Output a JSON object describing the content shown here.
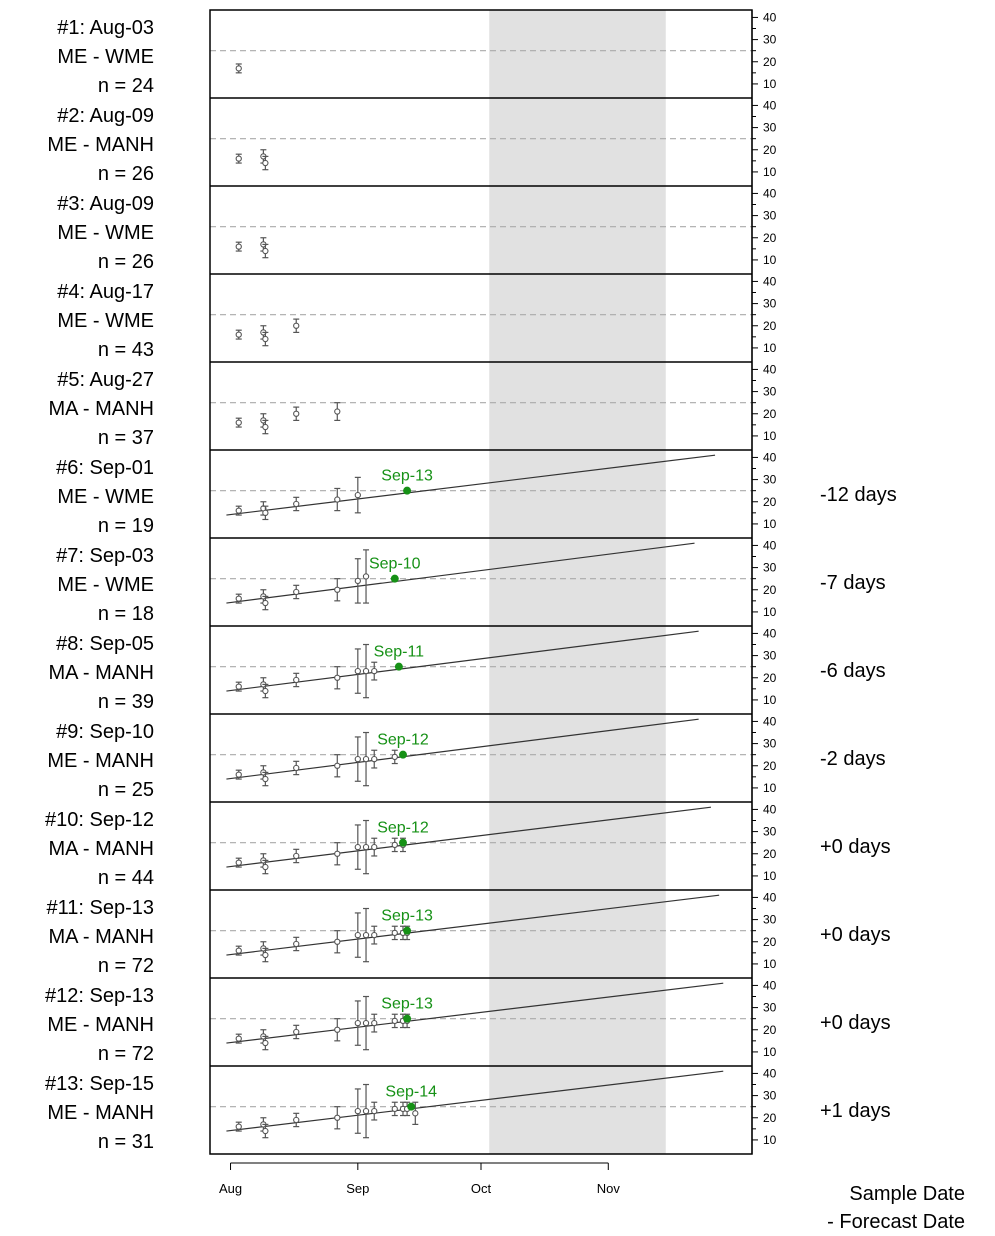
{
  "chart_data": {
    "type": "scatter",
    "x_axis": {
      "ticks": [
        "Aug",
        "Sep",
        "Oct",
        "Nov"
      ],
      "range": [
        "2019-07-27",
        "2019-12-06"
      ]
    },
    "y_axis": {
      "ticks": [
        10,
        20,
        30,
        40
      ],
      "range": [
        5,
        42
      ],
      "side": "right"
    },
    "threshold": 25,
    "shaded_region": [
      "2019-10-03",
      "2019-11-15"
    ],
    "colors": {
      "points": "#555555",
      "forecast": "#169116",
      "threshold": "#aaaaaa",
      "shade": "#e1e1e1"
    },
    "footer": [
      "Sample Date",
      "- Forecast Date"
    ],
    "panels": [
      {
        "title": "#1: Aug-03",
        "region": "ME - WME",
        "n": "n = 24",
        "points": [
          {
            "date": "2019-08-03",
            "mean": 17,
            "err": 2
          }
        ]
      },
      {
        "title": "#2: Aug-09",
        "region": "ME - MANH",
        "n": "n = 26",
        "points": [
          {
            "date": "2019-08-03",
            "mean": 16,
            "err": 2
          },
          {
            "date": "2019-08-09",
            "mean": 17,
            "err": 3
          },
          {
            "date": "2019-08-09",
            "mean": 14,
            "err": 3
          }
        ]
      },
      {
        "title": "#3: Aug-09",
        "region": "ME - WME",
        "n": "n = 26",
        "points": [
          {
            "date": "2019-08-03",
            "mean": 16,
            "err": 2
          },
          {
            "date": "2019-08-09",
            "mean": 17,
            "err": 3
          },
          {
            "date": "2019-08-09",
            "mean": 14,
            "err": 3
          }
        ]
      },
      {
        "title": "#4: Aug-17",
        "region": "ME - WME",
        "n": "n = 43",
        "points": [
          {
            "date": "2019-08-03",
            "mean": 16,
            "err": 2
          },
          {
            "date": "2019-08-09",
            "mean": 17,
            "err": 3
          },
          {
            "date": "2019-08-09",
            "mean": 14,
            "err": 3
          },
          {
            "date": "2019-08-17",
            "mean": 20,
            "err": 3
          }
        ]
      },
      {
        "title": "#5: Aug-27",
        "region": "MA - MANH",
        "n": "n = 37",
        "points": [
          {
            "date": "2019-08-03",
            "mean": 16,
            "err": 2
          },
          {
            "date": "2019-08-09",
            "mean": 17,
            "err": 3
          },
          {
            "date": "2019-08-09",
            "mean": 14,
            "err": 3
          },
          {
            "date": "2019-08-17",
            "mean": 20,
            "err": 3
          },
          {
            "date": "2019-08-27",
            "mean": 21,
            "err": 4
          }
        ]
      },
      {
        "title": "#6: Sep-01",
        "region": "ME - WME",
        "n": "n = 19",
        "offset": "-12 days",
        "fit": {
          "start": [
            "2019-07-31",
            14
          ],
          "end": [
            "2019-11-27",
            41
          ]
        },
        "forecast": {
          "date": "2019-09-13",
          "value": 25,
          "label": "Sep-13"
        },
        "points": [
          {
            "date": "2019-08-03",
            "mean": 16,
            "err": 2
          },
          {
            "date": "2019-08-09",
            "mean": 17,
            "err": 3
          },
          {
            "date": "2019-08-09",
            "mean": 15,
            "err": 3
          },
          {
            "date": "2019-08-17",
            "mean": 19,
            "err": 3
          },
          {
            "date": "2019-08-27",
            "mean": 21,
            "err": 5
          },
          {
            "date": "2019-09-01",
            "mean": 23,
            "err": 8
          }
        ]
      },
      {
        "title": "#7: Sep-03",
        "region": "ME - WME",
        "n": "n = 18",
        "offset": "-7 days",
        "fit": {
          "start": [
            "2019-07-31",
            14
          ],
          "end": [
            "2019-11-22",
            41
          ]
        },
        "forecast": {
          "date": "2019-09-10",
          "value": 25,
          "label": "Sep-10"
        },
        "points": [
          {
            "date": "2019-08-03",
            "mean": 16,
            "err": 2
          },
          {
            "date": "2019-08-09",
            "mean": 17,
            "err": 3
          },
          {
            "date": "2019-08-09",
            "mean": 14,
            "err": 3
          },
          {
            "date": "2019-08-17",
            "mean": 19,
            "err": 3
          },
          {
            "date": "2019-08-27",
            "mean": 20,
            "err": 5
          },
          {
            "date": "2019-09-01",
            "mean": 24,
            "err": 10
          },
          {
            "date": "2019-09-03",
            "mean": 26,
            "err": 12
          }
        ]
      },
      {
        "title": "#8: Sep-05",
        "region": "MA - MANH",
        "n": "n = 39",
        "offset": "-6 days",
        "fit": {
          "start": [
            "2019-07-31",
            14
          ],
          "end": [
            "2019-11-23",
            41
          ]
        },
        "forecast": {
          "date": "2019-09-11",
          "value": 25,
          "label": "Sep-11"
        },
        "points": [
          {
            "date": "2019-08-03",
            "mean": 16,
            "err": 2
          },
          {
            "date": "2019-08-09",
            "mean": 17,
            "err": 3
          },
          {
            "date": "2019-08-09",
            "mean": 14,
            "err": 3
          },
          {
            "date": "2019-08-17",
            "mean": 19,
            "err": 3
          },
          {
            "date": "2019-08-27",
            "mean": 20,
            "err": 5
          },
          {
            "date": "2019-09-01",
            "mean": 23,
            "err": 10
          },
          {
            "date": "2019-09-03",
            "mean": 23,
            "err": 12
          },
          {
            "date": "2019-09-05",
            "mean": 23,
            "err": 4
          }
        ]
      },
      {
        "title": "#9: Sep-10",
        "region": "ME - MANH",
        "n": "n = 25",
        "offset": "-2 days",
        "fit": {
          "start": [
            "2019-07-31",
            14
          ],
          "end": [
            "2019-11-23",
            41
          ]
        },
        "forecast": {
          "date": "2019-09-12",
          "value": 25,
          "label": "Sep-12"
        },
        "points": [
          {
            "date": "2019-08-03",
            "mean": 16,
            "err": 2
          },
          {
            "date": "2019-08-09",
            "mean": 17,
            "err": 3
          },
          {
            "date": "2019-08-09",
            "mean": 14,
            "err": 3
          },
          {
            "date": "2019-08-17",
            "mean": 19,
            "err": 3
          },
          {
            "date": "2019-08-27",
            "mean": 20,
            "err": 5
          },
          {
            "date": "2019-09-01",
            "mean": 23,
            "err": 10
          },
          {
            "date": "2019-09-03",
            "mean": 23,
            "err": 12
          },
          {
            "date": "2019-09-05",
            "mean": 23,
            "err": 4
          },
          {
            "date": "2019-09-10",
            "mean": 24,
            "err": 3
          }
        ]
      },
      {
        "title": "#10: Sep-12",
        "region": "MA - MANH",
        "n": "n = 44",
        "offset": "+0 days",
        "fit": {
          "start": [
            "2019-07-31",
            14
          ],
          "end": [
            "2019-11-26",
            41
          ]
        },
        "forecast": {
          "date": "2019-09-12",
          "value": 25,
          "label": "Sep-12"
        },
        "points": [
          {
            "date": "2019-08-03",
            "mean": 16,
            "err": 2
          },
          {
            "date": "2019-08-09",
            "mean": 17,
            "err": 3
          },
          {
            "date": "2019-08-09",
            "mean": 14,
            "err": 3
          },
          {
            "date": "2019-08-17",
            "mean": 19,
            "err": 3
          },
          {
            "date": "2019-08-27",
            "mean": 20,
            "err": 5
          },
          {
            "date": "2019-09-01",
            "mean": 23,
            "err": 10
          },
          {
            "date": "2019-09-03",
            "mean": 23,
            "err": 12
          },
          {
            "date": "2019-09-05",
            "mean": 23,
            "err": 4
          },
          {
            "date": "2019-09-10",
            "mean": 24,
            "err": 3
          },
          {
            "date": "2019-09-12",
            "mean": 24,
            "err": 3
          }
        ]
      },
      {
        "title": "#11: Sep-13",
        "region": "MA - MANH",
        "n": "n = 72",
        "offset": "+0 days",
        "fit": {
          "start": [
            "2019-07-31",
            14
          ],
          "end": [
            "2019-11-28",
            41
          ]
        },
        "forecast": {
          "date": "2019-09-13",
          "value": 25,
          "label": "Sep-13"
        },
        "points": [
          {
            "date": "2019-08-03",
            "mean": 16,
            "err": 2
          },
          {
            "date": "2019-08-09",
            "mean": 17,
            "err": 3
          },
          {
            "date": "2019-08-09",
            "mean": 14,
            "err": 3
          },
          {
            "date": "2019-08-17",
            "mean": 19,
            "err": 3
          },
          {
            "date": "2019-08-27",
            "mean": 20,
            "err": 5
          },
          {
            "date": "2019-09-01",
            "mean": 23,
            "err": 10
          },
          {
            "date": "2019-09-03",
            "mean": 23,
            "err": 12
          },
          {
            "date": "2019-09-05",
            "mean": 23,
            "err": 4
          },
          {
            "date": "2019-09-10",
            "mean": 24,
            "err": 3
          },
          {
            "date": "2019-09-12",
            "mean": 24,
            "err": 3
          },
          {
            "date": "2019-09-13",
            "mean": 24,
            "err": 3
          }
        ]
      },
      {
        "title": "#12: Sep-13",
        "region": "ME - MANH",
        "n": "n = 72",
        "offset": "+0 days",
        "fit": {
          "start": [
            "2019-07-31",
            14
          ],
          "end": [
            "2019-11-29",
            41
          ]
        },
        "forecast": {
          "date": "2019-09-13",
          "value": 25,
          "label": "Sep-13"
        },
        "points": [
          {
            "date": "2019-08-03",
            "mean": 16,
            "err": 2
          },
          {
            "date": "2019-08-09",
            "mean": 17,
            "err": 3
          },
          {
            "date": "2019-08-09",
            "mean": 14,
            "err": 3
          },
          {
            "date": "2019-08-17",
            "mean": 19,
            "err": 3
          },
          {
            "date": "2019-08-27",
            "mean": 20,
            "err": 5
          },
          {
            "date": "2019-09-01",
            "mean": 23,
            "err": 10
          },
          {
            "date": "2019-09-03",
            "mean": 23,
            "err": 12
          },
          {
            "date": "2019-09-05",
            "mean": 23,
            "err": 4
          },
          {
            "date": "2019-09-10",
            "mean": 24,
            "err": 3
          },
          {
            "date": "2019-09-12",
            "mean": 24,
            "err": 3
          },
          {
            "date": "2019-09-13",
            "mean": 24,
            "err": 3
          }
        ]
      },
      {
        "title": "#13: Sep-15",
        "region": "ME - MANH",
        "n": "n = 31",
        "offset": "+1 days",
        "fit": {
          "start": [
            "2019-07-31",
            14
          ],
          "end": [
            "2019-11-29",
            41
          ]
        },
        "forecast": {
          "date": "2019-09-14",
          "value": 25,
          "label": "Sep-14"
        },
        "points": [
          {
            "date": "2019-08-03",
            "mean": 16,
            "err": 2
          },
          {
            "date": "2019-08-09",
            "mean": 17,
            "err": 3
          },
          {
            "date": "2019-08-09",
            "mean": 14,
            "err": 3
          },
          {
            "date": "2019-08-17",
            "mean": 19,
            "err": 3
          },
          {
            "date": "2019-08-27",
            "mean": 20,
            "err": 5
          },
          {
            "date": "2019-09-01",
            "mean": 23,
            "err": 10
          },
          {
            "date": "2019-09-03",
            "mean": 23,
            "err": 12
          },
          {
            "date": "2019-09-05",
            "mean": 23,
            "err": 4
          },
          {
            "date": "2019-09-10",
            "mean": 24,
            "err": 3
          },
          {
            "date": "2019-09-12",
            "mean": 24,
            "err": 3
          },
          {
            "date": "2019-09-13",
            "mean": 24,
            "err": 3
          },
          {
            "date": "2019-09-15",
            "mean": 22,
            "err": 5
          }
        ]
      }
    ]
  }
}
